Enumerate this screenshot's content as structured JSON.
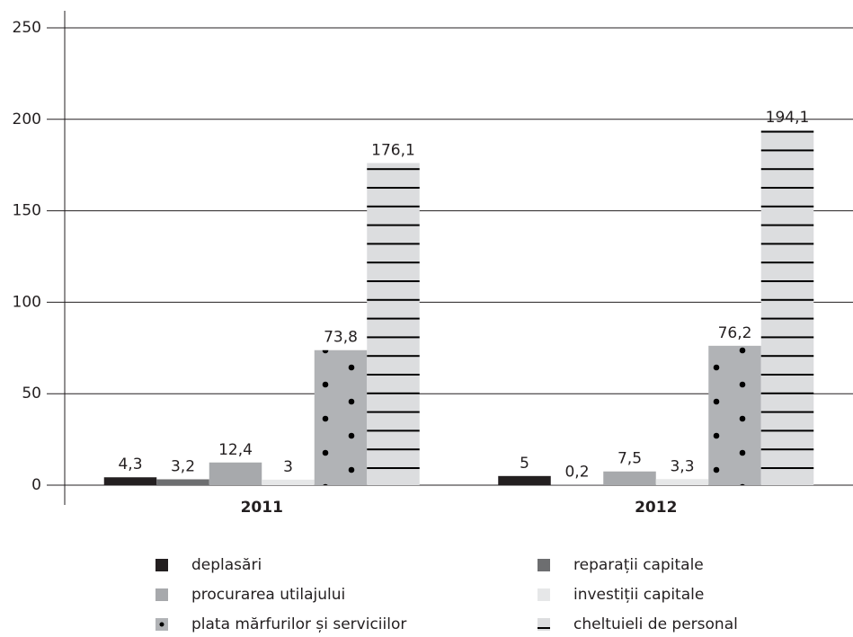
{
  "chart_data": {
    "type": "bar",
    "categories": [
      "2011",
      "2012"
    ],
    "ylim": [
      0,
      250
    ],
    "yticks": [
      0,
      50,
      100,
      150,
      200,
      250
    ],
    "grid": true,
    "legend": "bottom",
    "series": [
      {
        "name": "deplasări",
        "color": "#231f20",
        "values": [
          4.3,
          5
        ],
        "value_labels": [
          "4,3",
          "5"
        ]
      },
      {
        "name": "reparații capitale",
        "color": "#6d6e70",
        "values": [
          3.2,
          0.2
        ],
        "value_labels": [
          "3,2",
          "0,2"
        ]
      },
      {
        "name": "procurarea utilajului",
        "color": "#a7a9ac",
        "values": [
          12.4,
          7.5
        ],
        "value_labels": [
          "12,4",
          "7,5"
        ]
      },
      {
        "name": "investiții capitale",
        "color": "#e6e7e8",
        "values": [
          3,
          3.3
        ],
        "value_labels": [
          "3",
          "3,3"
        ]
      },
      {
        "name": "plata mărfurilor și serviciilor",
        "color": "#b1b3b6",
        "pattern": "dots",
        "values": [
          73.8,
          76.2
        ],
        "value_labels": [
          "73,8",
          "76,2"
        ]
      },
      {
        "name": "cheltuieli de personal",
        "color": "#dcdddf",
        "pattern": "hlines",
        "values": [
          176.1,
          194.1
        ],
        "value_labels": [
          "176,1",
          "194,1"
        ]
      }
    ]
  }
}
